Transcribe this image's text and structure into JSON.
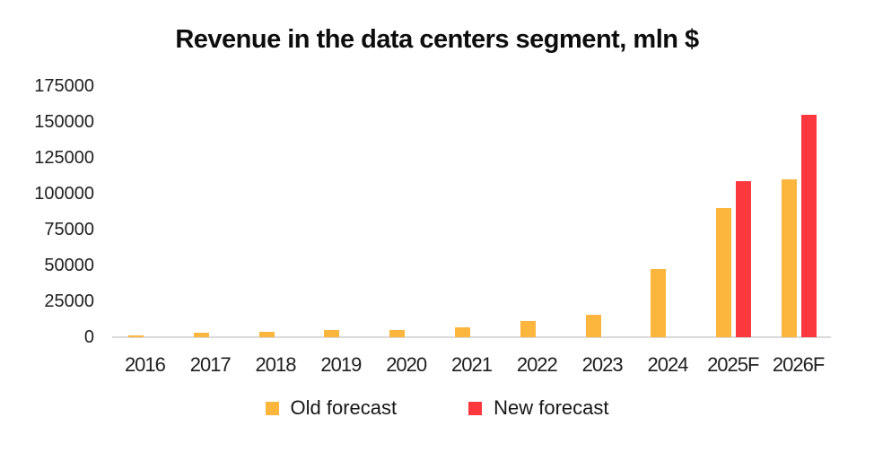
{
  "chart_data": {
    "type": "bar",
    "title": "Revenue in the data centers segment, mln $",
    "categories": [
      "2016",
      "2017",
      "2018",
      "2019",
      "2020",
      "2021",
      "2022",
      "2023",
      "2024",
      "2025F",
      "2026F"
    ],
    "series": [
      {
        "name": "Old forecast",
        "color": "#FCB53D",
        "values": [
          1500,
          2900,
          3700,
          4900,
          4700,
          7000,
          11300,
          15500,
          47500,
          90000,
          110000
        ]
      },
      {
        "name": "New forecast",
        "color": "#FA383E",
        "values": [
          null,
          null,
          null,
          null,
          null,
          null,
          null,
          null,
          null,
          109000,
          155000
        ]
      }
    ],
    "xlabel": "",
    "ylabel": "",
    "ylim": [
      0,
      175000
    ],
    "yticks": [
      0,
      25000,
      50000,
      75000,
      100000,
      125000,
      150000,
      175000
    ],
    "grid": false,
    "axis_line_color": "#D9D9D9",
    "legend_position": "bottom"
  },
  "legend": {
    "items": [
      {
        "label": "Old forecast",
        "color": "#FCB53D"
      },
      {
        "label": "New forecast",
        "color": "#FA383E"
      }
    ]
  }
}
